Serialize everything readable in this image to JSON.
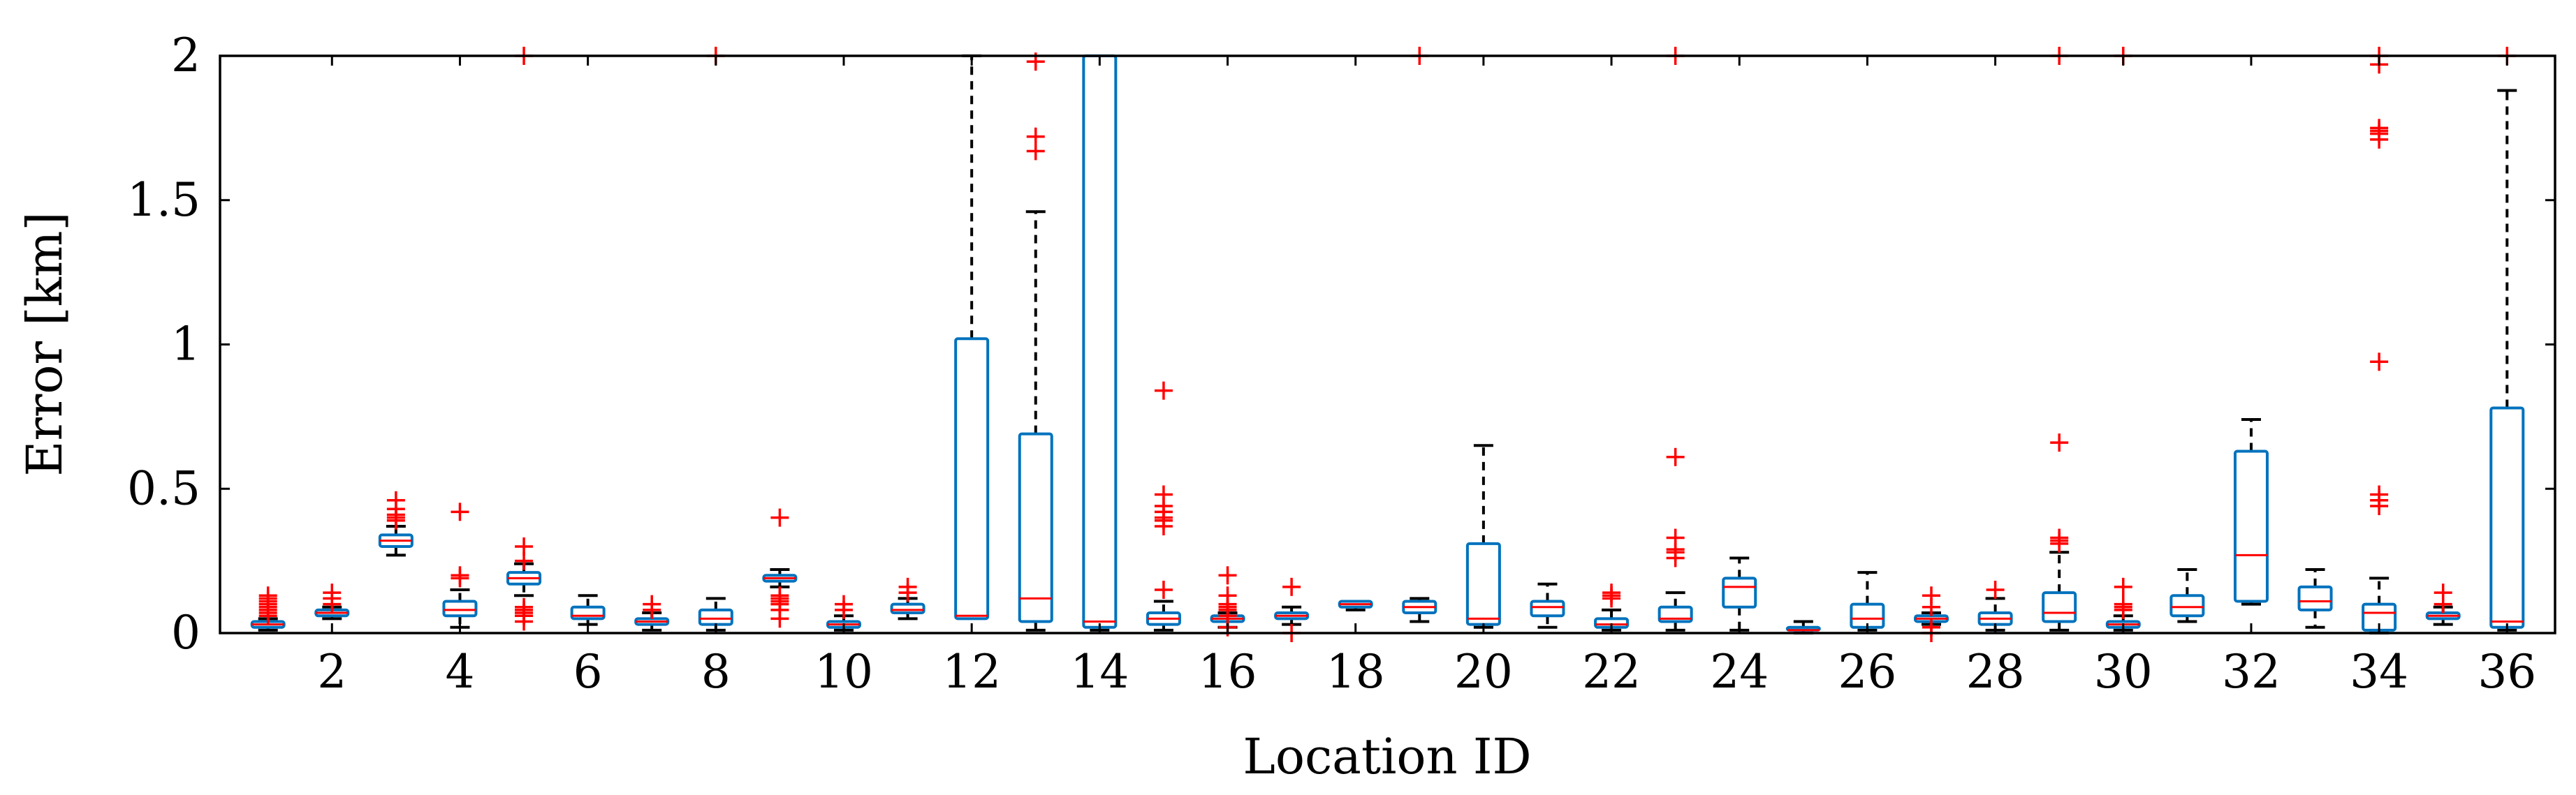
{
  "chart_data": {
    "type": "box",
    "title": "",
    "xlabel": "Location ID",
    "ylabel": "Error [km]",
    "xlim": [
      0.25,
      36.75
    ],
    "ylim": [
      0,
      2
    ],
    "grid": false,
    "x_ticks": [
      2,
      4,
      6,
      8,
      10,
      12,
      14,
      16,
      18,
      20,
      22,
      24,
      26,
      28,
      30,
      32,
      34,
      36
    ],
    "x_tick_labels": [
      "2",
      "4",
      "6",
      "8",
      "10",
      "12",
      "14",
      "16",
      "18",
      "20",
      "22",
      "24",
      "26",
      "28",
      "30",
      "32",
      "34",
      "36"
    ],
    "y_ticks": [
      0,
      0.5,
      1,
      1.5,
      2
    ],
    "y_tick_labels": [
      "0",
      "0.5",
      "1",
      "1.5",
      "2"
    ],
    "colors": {
      "box": "#0072BD",
      "median": "#FF0000",
      "whisker": "#000000",
      "outlier": "#FF0000"
    },
    "boxes": [
      {
        "id": 1,
        "whislo": 0.01,
        "q1": 0.02,
        "med": 0.03,
        "q3": 0.04,
        "whishi": 0.05,
        "fliers": [
          0.06,
          0.07,
          0.08,
          0.09,
          0.1,
          0.11,
          0.12,
          0.13
        ]
      },
      {
        "id": 2,
        "whislo": 0.05,
        "q1": 0.06,
        "med": 0.07,
        "q3": 0.08,
        "whishi": 0.09,
        "fliers": [
          0.1,
          0.12,
          0.14
        ]
      },
      {
        "id": 3,
        "whislo": 0.27,
        "q1": 0.3,
        "med": 0.32,
        "q3": 0.34,
        "whishi": 0.37,
        "fliers": [
          0.39,
          0.4,
          0.41,
          0.43,
          0.46
        ]
      },
      {
        "id": 4,
        "whislo": 0.02,
        "q1": 0.06,
        "med": 0.08,
        "q3": 0.11,
        "whishi": 0.15,
        "fliers": [
          0.19,
          0.2,
          0.42
        ]
      },
      {
        "id": 5,
        "whislo": 0.13,
        "q1": 0.17,
        "med": 0.19,
        "q3": 0.21,
        "whishi": 0.24,
        "fliers": [
          0.04,
          0.06,
          0.07,
          0.08,
          0.09,
          0.25,
          0.3,
          2.0
        ]
      },
      {
        "id": 6,
        "whislo": 0.03,
        "q1": 0.05,
        "med": 0.06,
        "q3": 0.09,
        "whishi": 0.13,
        "fliers": []
      },
      {
        "id": 7,
        "whislo": 0.01,
        "q1": 0.03,
        "med": 0.04,
        "q3": 0.05,
        "whishi": 0.07,
        "fliers": [
          0.08,
          0.1
        ]
      },
      {
        "id": 8,
        "whislo": 0.01,
        "q1": 0.03,
        "med": 0.05,
        "q3": 0.08,
        "whishi": 0.12,
        "fliers": [
          2.0
        ]
      },
      {
        "id": 9,
        "whislo": 0.16,
        "q1": 0.18,
        "med": 0.19,
        "q3": 0.2,
        "whishi": 0.22,
        "fliers": [
          0.05,
          0.08,
          0.1,
          0.11,
          0.12,
          0.13,
          0.4
        ]
      },
      {
        "id": 10,
        "whislo": 0.01,
        "q1": 0.02,
        "med": 0.03,
        "q3": 0.04,
        "whishi": 0.06,
        "fliers": [
          0.08,
          0.1
        ]
      },
      {
        "id": 11,
        "whislo": 0.05,
        "q1": 0.07,
        "med": 0.08,
        "q3": 0.1,
        "whishi": 0.12,
        "fliers": [
          0.14,
          0.16
        ]
      },
      {
        "id": 12,
        "whislo": 0.05,
        "q1": 0.05,
        "med": 0.06,
        "q3": 1.02,
        "whishi": 2.0,
        "fliers": []
      },
      {
        "id": 13,
        "whislo": 0.01,
        "q1": 0.04,
        "med": 0.12,
        "q3": 0.69,
        "whishi": 1.46,
        "fliers": [
          1.67,
          1.72,
          1.98
        ]
      },
      {
        "id": 14,
        "whislo": 0.01,
        "q1": 0.02,
        "med": 0.04,
        "q3": 2.0,
        "whishi": 2.0,
        "fliers": []
      },
      {
        "id": 15,
        "whislo": 0.01,
        "q1": 0.03,
        "med": 0.05,
        "q3": 0.07,
        "whishi": 0.11,
        "fliers": [
          0.15,
          0.37,
          0.39,
          0.4,
          0.42,
          0.44,
          0.48,
          0.84
        ]
      },
      {
        "id": 16,
        "whislo": 0.02,
        "q1": 0.04,
        "med": 0.05,
        "q3": 0.06,
        "whishi": 0.07,
        "fliers": [
          0.02,
          0.06,
          0.08,
          0.09,
          0.1,
          0.13,
          0.2
        ]
      },
      {
        "id": 17,
        "whislo": 0.03,
        "q1": 0.05,
        "med": 0.06,
        "q3": 0.07,
        "whishi": 0.09,
        "fliers": [
          0.0,
          0.16
        ]
      },
      {
        "id": 18,
        "whislo": 0.08,
        "q1": 0.09,
        "med": 0.1,
        "q3": 0.11,
        "whishi": 0.11,
        "fliers": []
      },
      {
        "id": 19,
        "whislo": 0.04,
        "q1": 0.07,
        "med": 0.09,
        "q3": 0.11,
        "whishi": 0.12,
        "fliers": [
          2.0
        ]
      },
      {
        "id": 20,
        "whislo": 0.02,
        "q1": 0.03,
        "med": 0.05,
        "q3": 0.31,
        "whishi": 0.65,
        "fliers": []
      },
      {
        "id": 21,
        "whislo": 0.02,
        "q1": 0.06,
        "med": 0.09,
        "q3": 0.11,
        "whishi": 0.17,
        "fliers": []
      },
      {
        "id": 22,
        "whislo": 0.01,
        "q1": 0.02,
        "med": 0.03,
        "q3": 0.05,
        "whishi": 0.08,
        "fliers": [
          0.12,
          0.13,
          0.14
        ]
      },
      {
        "id": 23,
        "whislo": 0.01,
        "q1": 0.04,
        "med": 0.05,
        "q3": 0.09,
        "whishi": 0.14,
        "fliers": [
          0.26,
          0.28,
          0.29,
          0.33,
          0.61,
          2.0
        ]
      },
      {
        "id": 24,
        "whislo": 0.01,
        "q1": 0.09,
        "med": 0.16,
        "q3": 0.19,
        "whishi": 0.26,
        "fliers": []
      },
      {
        "id": 25,
        "whislo": 0.0,
        "q1": 0.01,
        "med": 0.01,
        "q3": 0.02,
        "whishi": 0.04,
        "fliers": []
      },
      {
        "id": 26,
        "whislo": 0.01,
        "q1": 0.02,
        "med": 0.05,
        "q3": 0.1,
        "whishi": 0.21,
        "fliers": []
      },
      {
        "id": 27,
        "whislo": 0.03,
        "q1": 0.04,
        "med": 0.05,
        "q3": 0.06,
        "whishi": 0.07,
        "fliers": [
          0.0,
          0.02,
          0.09,
          0.13
        ]
      },
      {
        "id": 28,
        "whislo": 0.01,
        "q1": 0.03,
        "med": 0.05,
        "q3": 0.07,
        "whishi": 0.12,
        "fliers": [
          0.15
        ]
      },
      {
        "id": 29,
        "whislo": 0.01,
        "q1": 0.04,
        "med": 0.07,
        "q3": 0.14,
        "whishi": 0.28,
        "fliers": [
          0.31,
          0.32,
          0.33,
          0.66,
          2.0
        ]
      },
      {
        "id": 30,
        "whislo": 0.01,
        "q1": 0.02,
        "med": 0.03,
        "q3": 0.04,
        "whishi": 0.06,
        "fliers": [
          0.08,
          0.09,
          0.1,
          0.16,
          2.0
        ]
      },
      {
        "id": 31,
        "whislo": 0.04,
        "q1": 0.06,
        "med": 0.09,
        "q3": 0.13,
        "whishi": 0.22,
        "fliers": []
      },
      {
        "id": 32,
        "whislo": 0.1,
        "q1": 0.11,
        "med": 0.27,
        "q3": 0.63,
        "whishi": 0.74,
        "fliers": []
      },
      {
        "id": 33,
        "whislo": 0.02,
        "q1": 0.08,
        "med": 0.11,
        "q3": 0.16,
        "whishi": 0.22,
        "fliers": []
      },
      {
        "id": 34,
        "whislo": 0.0,
        "q1": 0.01,
        "med": 0.07,
        "q3": 0.1,
        "whishi": 0.19,
        "fliers": [
          0.44,
          0.46,
          0.48,
          0.94,
          1.71,
          1.73,
          1.74,
          1.75,
          1.97,
          2.0
        ]
      },
      {
        "id": 35,
        "whislo": 0.03,
        "q1": 0.05,
        "med": 0.06,
        "q3": 0.07,
        "whishi": 0.09,
        "fliers": [
          0.1,
          0.14
        ]
      },
      {
        "id": 36,
        "whislo": 0.01,
        "q1": 0.02,
        "med": 0.04,
        "q3": 0.78,
        "whishi": 1.88,
        "fliers": [
          2.0
        ]
      }
    ]
  }
}
